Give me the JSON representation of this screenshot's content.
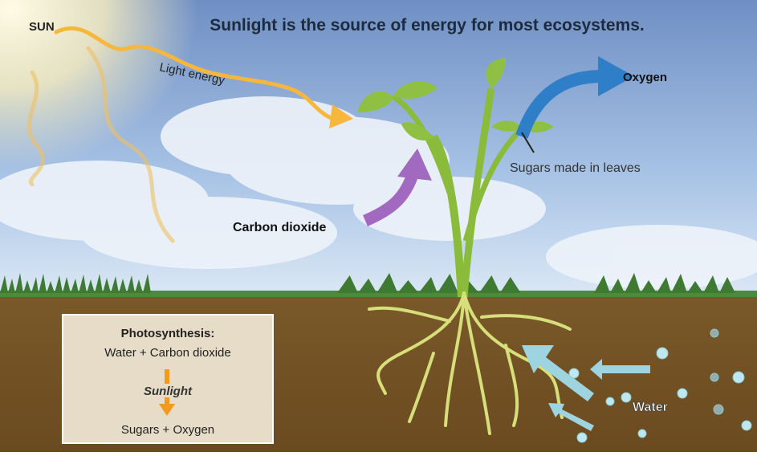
{
  "title": "Sunlight is the source of energy for most ecosystems.",
  "labels": {
    "sun": "SUN",
    "light_energy": "Light energy",
    "oxygen": "Oxygen",
    "sugars": "Sugars made in leaves",
    "carbon_dioxide": "Carbon dioxide",
    "water": "Water"
  },
  "box": {
    "heading": "Photosynthesis:",
    "inputs": "Water + Carbon dioxide",
    "condition": "Sunlight",
    "outputs": "Sugars + Oxygen"
  }
}
